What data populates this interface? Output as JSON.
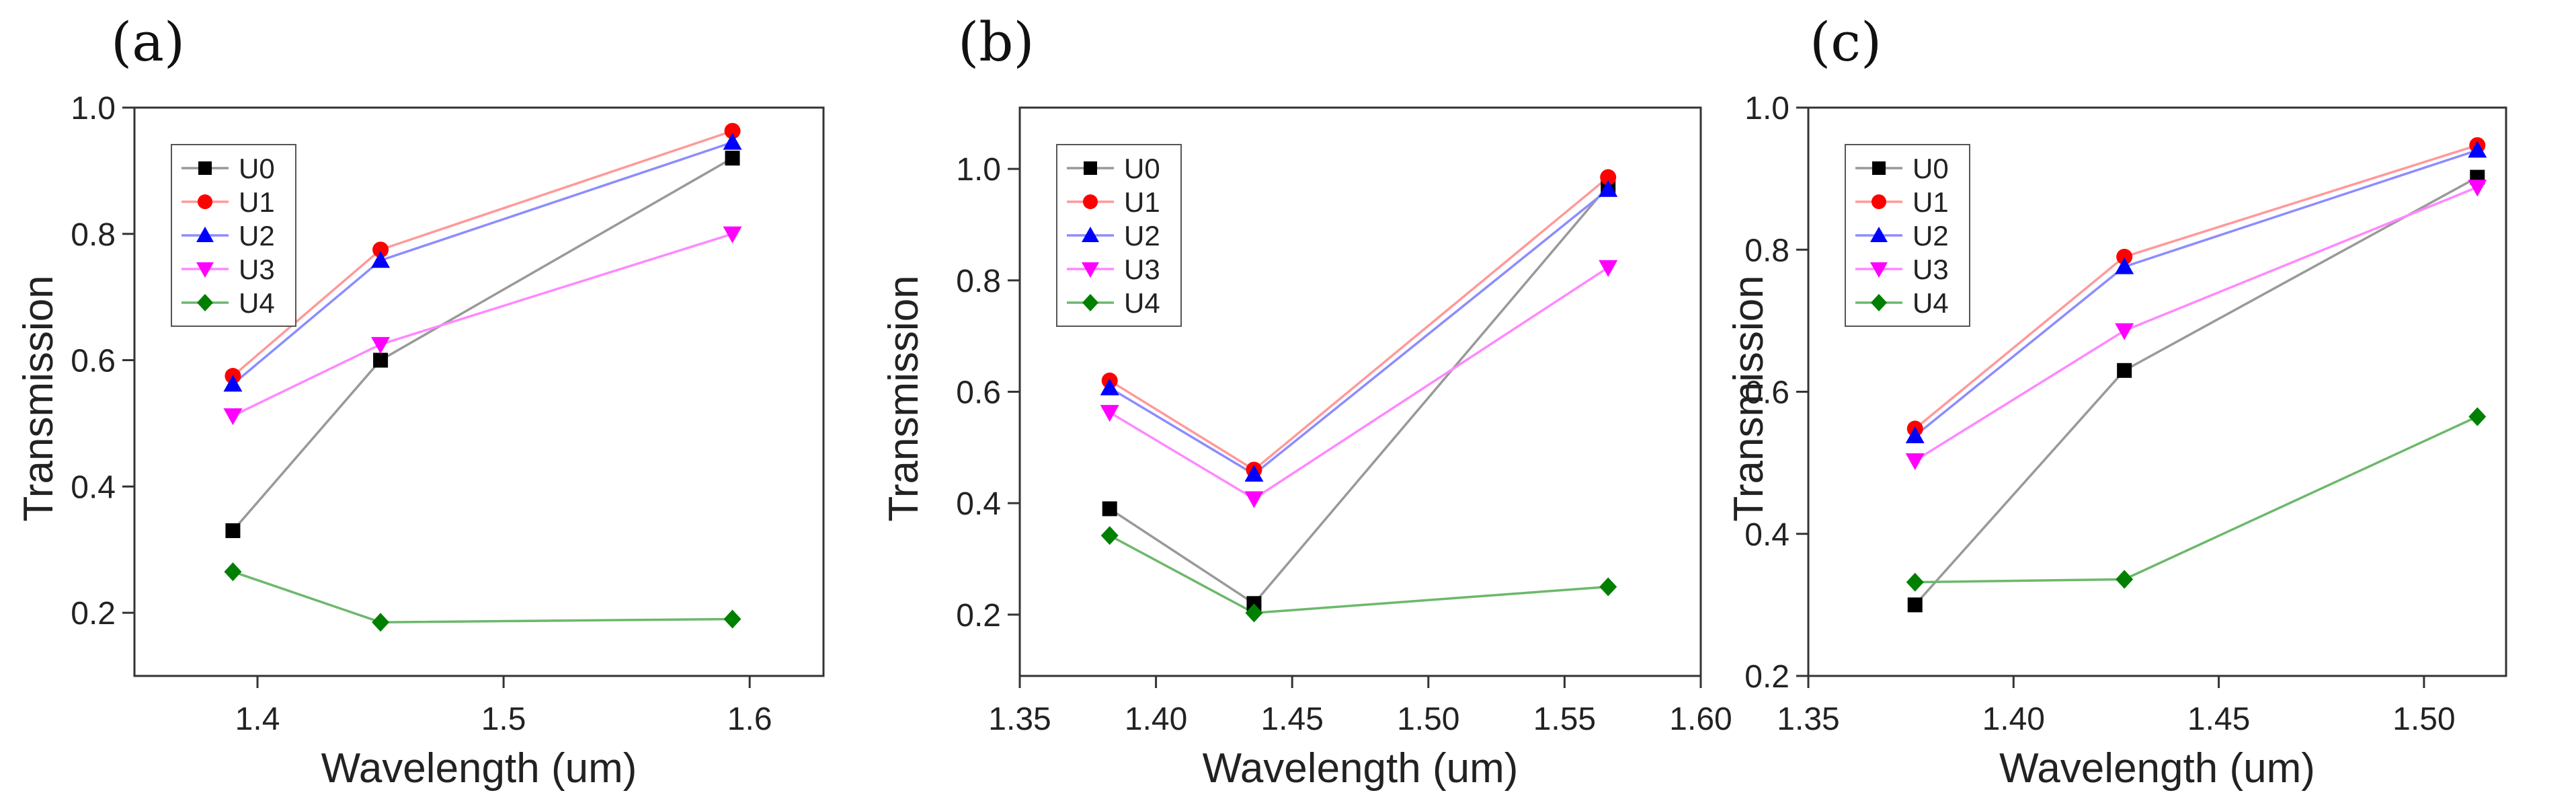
{
  "chart_data": [
    {
      "type": "line",
      "panel_label": "(a)",
      "xlabel": "Wavelength (um)",
      "ylabel": "Transmission",
      "xlim": [
        1.35,
        1.63
      ],
      "ylim": [
        0.1,
        1.0
      ],
      "xticks": [
        1.4,
        1.5,
        1.6
      ],
      "xtick_labels": [
        "1.4",
        "1.5",
        "1.6"
      ],
      "yticks": [
        0.2,
        0.4,
        0.6,
        0.8,
        1.0
      ],
      "ytick_labels": [
        "0.2",
        "0.4",
        "0.6",
        "0.8",
        "1.0"
      ],
      "legend_position": "top-left",
      "x": [
        1.39,
        1.45,
        1.593
      ],
      "series": [
        {
          "name": "U0",
          "values": [
            0.33,
            0.6,
            0.92
          ]
        },
        {
          "name": "U1",
          "values": [
            0.575,
            0.775,
            0.963
          ]
        },
        {
          "name": "U2",
          "values": [
            0.562,
            0.758,
            0.945
          ]
        },
        {
          "name": "U3",
          "values": [
            0.512,
            0.625,
            0.8
          ]
        },
        {
          "name": "U4",
          "values": [
            0.265,
            0.185,
            0.19
          ]
        }
      ]
    },
    {
      "type": "line",
      "panel_label": "(b)",
      "xlabel": "Wavelength (um)",
      "ylabel": "Transmission",
      "xlim": [
        1.35,
        1.6
      ],
      "ylim": [
        0.09,
        1.11
      ],
      "xticks": [
        1.35,
        1.4,
        1.45,
        1.5,
        1.55,
        1.6
      ],
      "xtick_labels": [
        "1.35",
        "1.40",
        "1.45",
        "1.50",
        "1.55",
        "1.60"
      ],
      "yticks": [
        0.2,
        0.4,
        0.6,
        0.8,
        1.0
      ],
      "ytick_labels": [
        "0.2",
        "0.4",
        "0.6",
        "0.8",
        "1.0"
      ],
      "legend_position": "top-left",
      "x": [
        1.383,
        1.436,
        1.566
      ],
      "series": [
        {
          "name": "U0",
          "values": [
            0.39,
            0.22,
            0.97
          ]
        },
        {
          "name": "U1",
          "values": [
            0.62,
            0.46,
            0.985
          ]
        },
        {
          "name": "U2",
          "values": [
            0.607,
            0.452,
            0.963
          ]
        },
        {
          "name": "U3",
          "values": [
            0.563,
            0.408,
            0.823
          ]
        },
        {
          "name": "U4",
          "values": [
            0.342,
            0.203,
            0.25
          ]
        }
      ]
    },
    {
      "type": "line",
      "panel_label": "(c)",
      "xlabel": "Wavelength (um)",
      "ylabel": "Transmission",
      "xlim": [
        1.35,
        1.52
      ],
      "ylim": [
        0.2,
        1.0
      ],
      "xticks": [
        1.35,
        1.4,
        1.45,
        1.5
      ],
      "xtick_labels": [
        "1.35",
        "1.40",
        "1.45",
        "1.50"
      ],
      "yticks": [
        0.2,
        0.4,
        0.6,
        0.8,
        1.0
      ],
      "ytick_labels": [
        "0.2",
        "0.4",
        "0.6",
        "0.8",
        "1.0"
      ],
      "legend_position": "top-left",
      "x": [
        1.376,
        1.427,
        1.513
      ],
      "series": [
        {
          "name": "U0",
          "values": [
            0.3,
            0.63,
            0.902
          ]
        },
        {
          "name": "U1",
          "values": [
            0.548,
            0.79,
            0.947
          ]
        },
        {
          "name": "U2",
          "values": [
            0.538,
            0.776,
            0.94
          ]
        },
        {
          "name": "U3",
          "values": [
            0.503,
            0.686,
            0.888
          ]
        },
        {
          "name": "U4",
          "values": [
            0.332,
            0.336,
            0.565
          ]
        }
      ]
    }
  ],
  "style": {
    "series_colors": {
      "U0": "#000000",
      "U1": "#ff0000",
      "U2": "#0000ff",
      "U3": "#ff00ff",
      "U4": "#008000"
    },
    "line_colors": {
      "U0": "#999999",
      "U1": "#ff9999",
      "U2": "#8c8cff",
      "U3": "#ff88ff",
      "U4": "#6cb86c"
    },
    "markers": {
      "U0": "square",
      "U1": "circle",
      "U2": "triangle-up",
      "U3": "triangle-down",
      "U4": "diamond"
    },
    "axis_color": "#333333"
  }
}
